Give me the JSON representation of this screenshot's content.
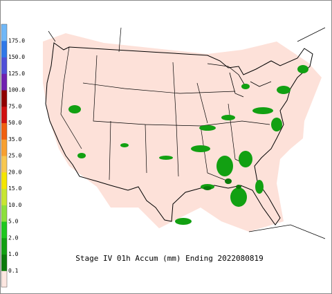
{
  "legend": {
    "labels": [
      "0.1",
      "1.0",
      "2.0",
      "5.0",
      "10.0",
      "15.0",
      "20.0",
      "25.0",
      "35.0",
      "50.0",
      "75.0",
      "100.0",
      "125.0",
      "150.0",
      "175.0"
    ],
    "colors": [
      "#fde7e1",
      "#0b7a0b",
      "#12a012",
      "#1ec81e",
      "#8ce03c",
      "#c8e632",
      "#f5e600",
      "#f8c850",
      "#f8a030",
      "#f06010",
      "#d01010",
      "#900000",
      "#7020b0",
      "#5050d8",
      "#3078e8",
      "#70b8f8"
    ]
  },
  "title": "Stage IV 01h Accum (mm) Ending 2022080819"
}
